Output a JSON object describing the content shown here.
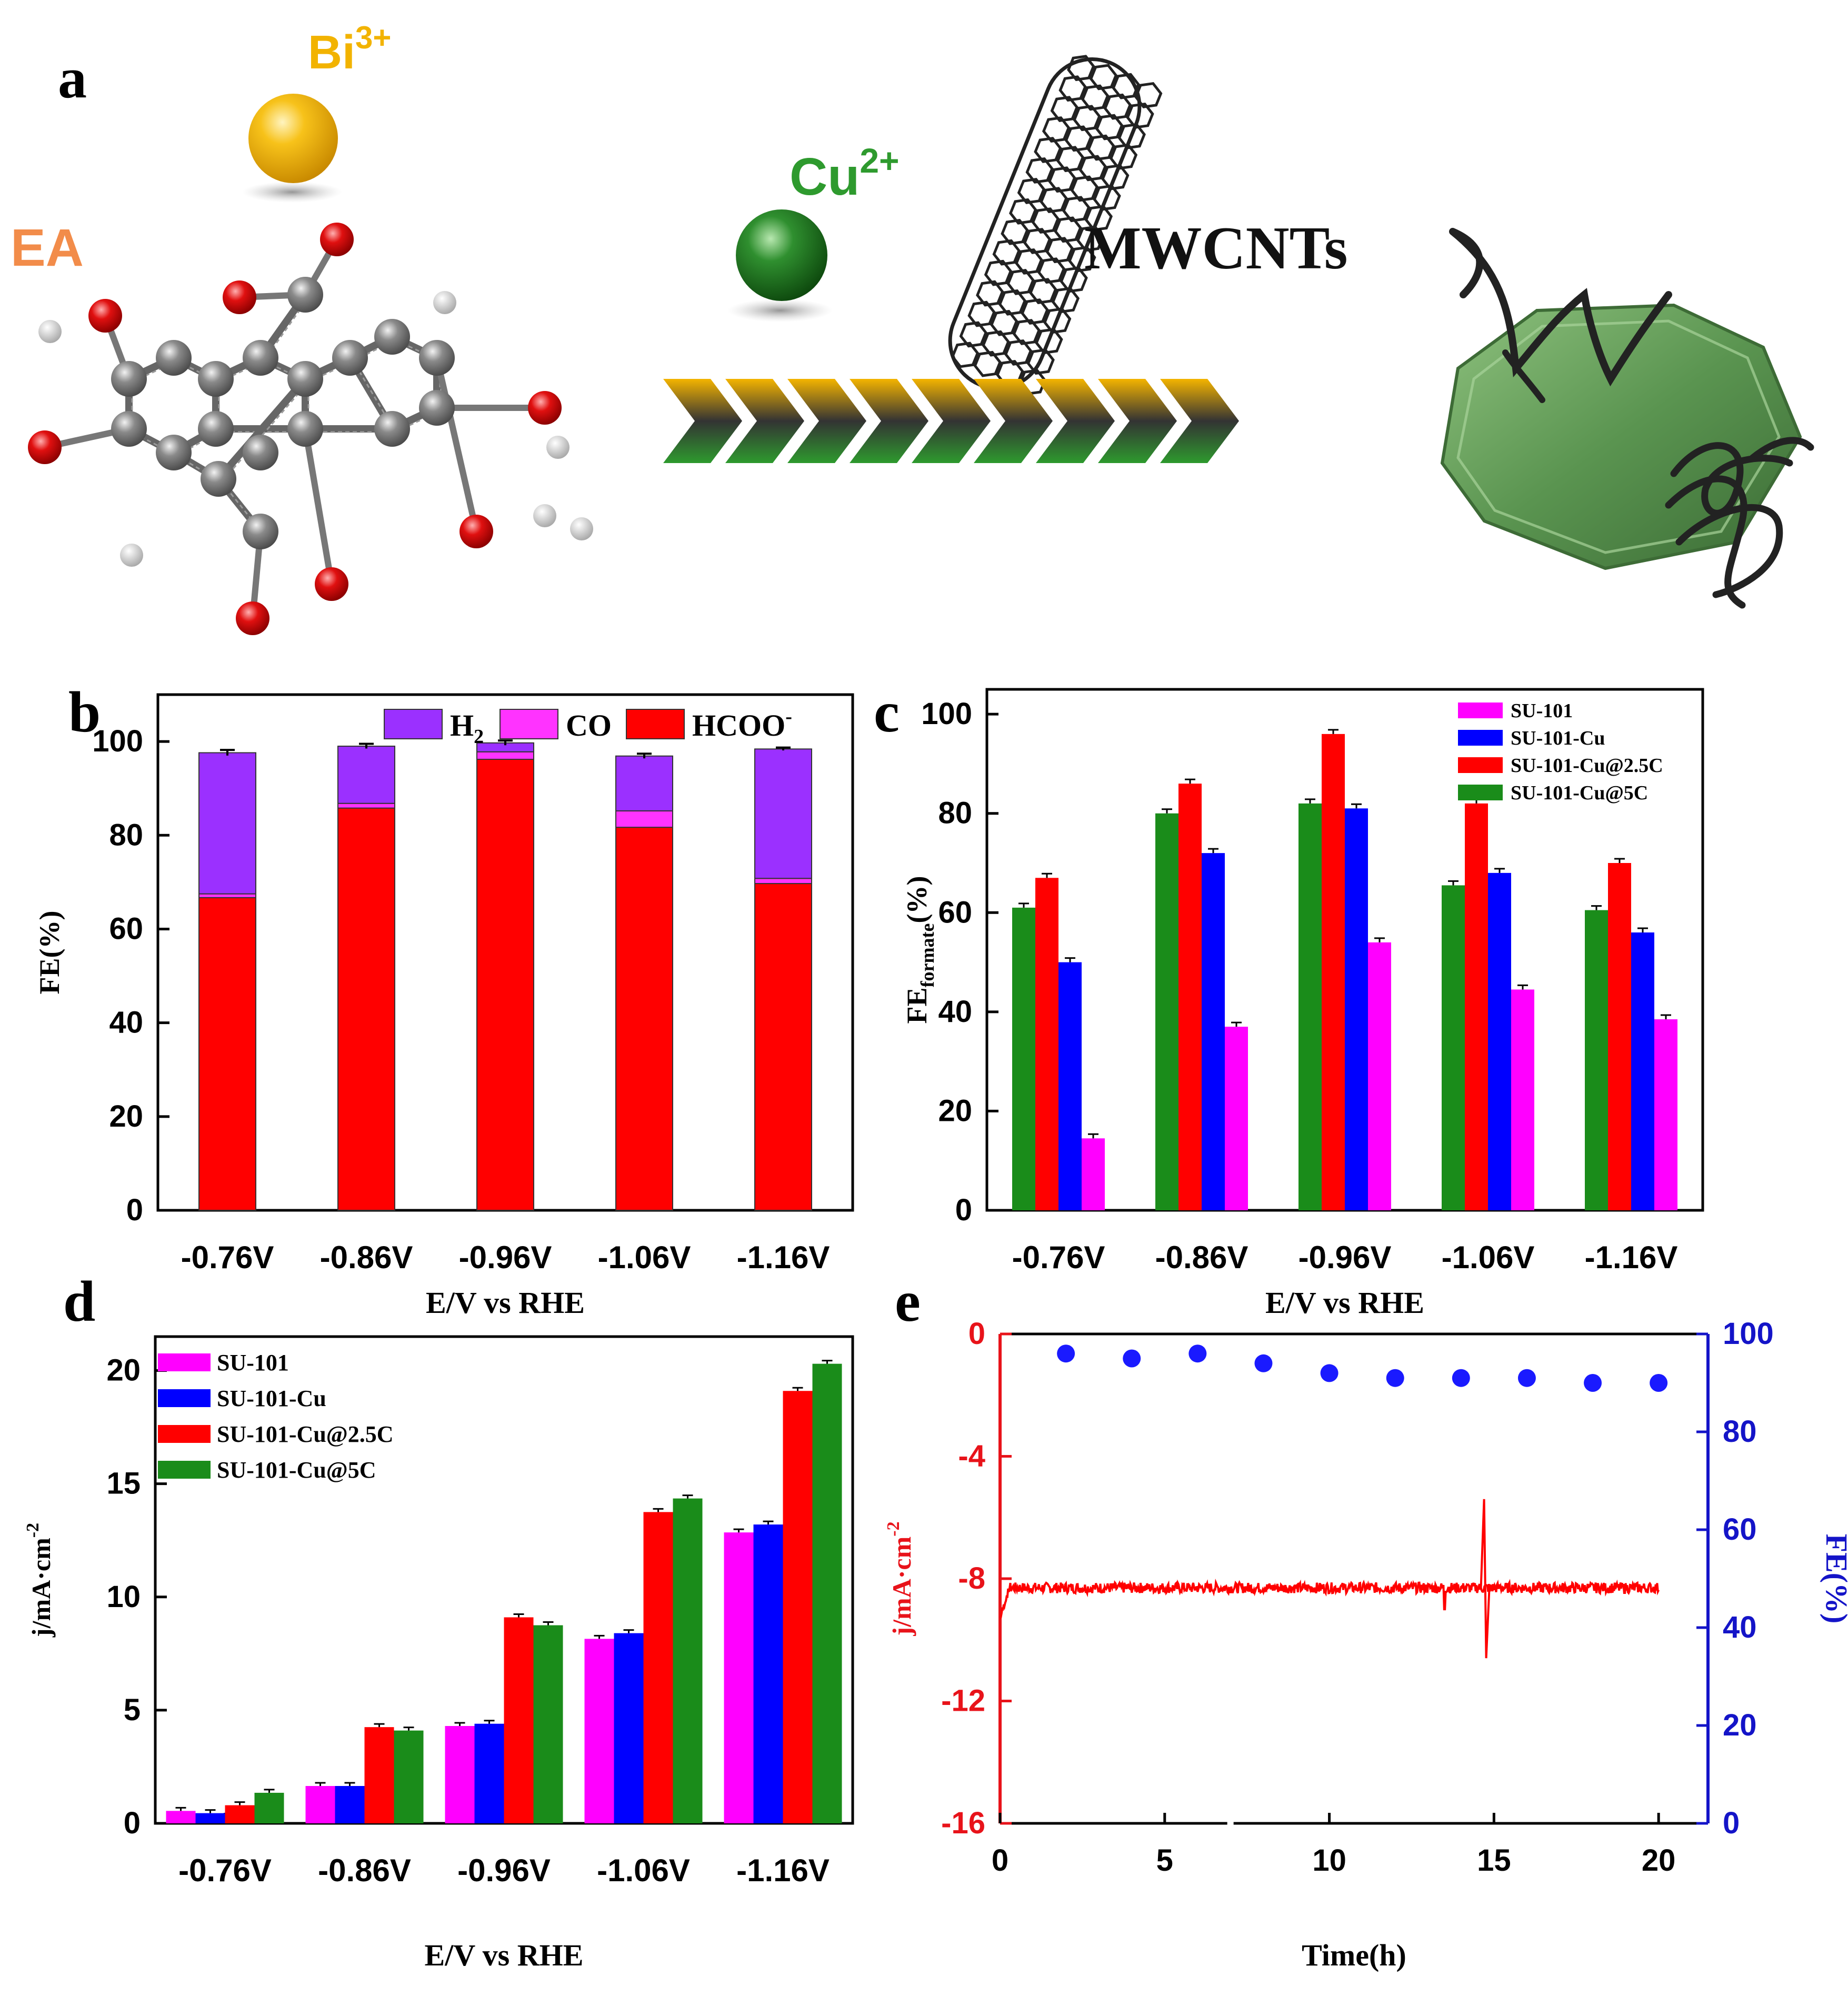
{
  "panel_a": {
    "label": "a",
    "ea_label": "EA",
    "bi_ion": "Bi",
    "bi_charge": "3+",
    "cu_ion": "Cu",
    "cu_charge": "2+",
    "mwcnt_label": "MWCNTs",
    "colors": {
      "bi": "#f2b300",
      "cu": "#2e8b2e",
      "ea": "#f28c4a",
      "octahedron": "#5d9a56"
    }
  },
  "chart_data": [
    {
      "id": "b",
      "panel_label": "b",
      "type": "bar",
      "stacked": true,
      "categories": [
        "-0.76V",
        "-0.86V",
        "-0.96V",
        "-1.06V",
        "-1.16V"
      ],
      "series": [
        {
          "name": "HCOO",
          "superscript": "-",
          "color": "#ff0000",
          "values": [
            66.7,
            85.8,
            96.2,
            81.7,
            69.7
          ]
        },
        {
          "name": "CO",
          "color": "#ff33ff",
          "values": [
            0.8,
            1.0,
            1.6,
            3.5,
            1.1
          ]
        },
        {
          "name": "H",
          "subscript": "2",
          "color": "#9b30ff",
          "values": [
            30.1,
            12.2,
            1.9,
            11.7,
            27.6
          ]
        }
      ],
      "errors": [
        0.6,
        0.5,
        0.5,
        0.5,
        0.3
      ],
      "xlabel": "E/V vs RHE",
      "ylabel": "FE(%)",
      "ylim": [
        0,
        110
      ],
      "yticks": [
        0,
        20,
        40,
        60,
        80,
        100
      ],
      "legend": "top-right"
    },
    {
      "id": "c",
      "panel_label": "c",
      "type": "bar",
      "categories": [
        "-0.76V",
        "-0.86V",
        "-0.96V",
        "-1.06V",
        "-1.16V"
      ],
      "series": [
        {
          "name": "SU-101-Cu@5C",
          "color": "#1a8c1a",
          "values": [
            61,
            80,
            82,
            65.5,
            60.5
          ]
        },
        {
          "name": "SU-101-Cu@2.5C",
          "color": "#ff0000",
          "values": [
            67,
            86,
            96,
            82,
            70
          ]
        },
        {
          "name": "SU-101-Cu",
          "color": "#0000ff",
          "values": [
            50,
            72,
            81,
            68,
            56
          ]
        },
        {
          "name": "SU-101",
          "color": "#ff00ff",
          "values": [
            14.5,
            37,
            54,
            44.5,
            38.5
          ]
        }
      ],
      "legend_order": [
        "SU-101",
        "SU-101-Cu",
        "SU-101-Cu@2.5C",
        "SU-101-Cu@5C"
      ],
      "xlabel": "E/V vs RHE",
      "ylabel": "FE",
      "ylabel_sub": "formate",
      "ylabel_suffix": "(%)",
      "ylim": [
        0,
        105
      ],
      "yticks": [
        0,
        20,
        40,
        60,
        80,
        100
      ],
      "legend": "top-right"
    },
    {
      "id": "d",
      "panel_label": "d",
      "type": "bar",
      "categories": [
        "-0.76V",
        "-0.86V",
        "-0.96V",
        "-1.06V",
        "-1.16V"
      ],
      "series": [
        {
          "name": "SU-101",
          "color": "#ff00ff",
          "values": [
            0.55,
            1.65,
            4.3,
            8.15,
            12.85
          ]
        },
        {
          "name": "SU-101-Cu",
          "color": "#0000ff",
          "values": [
            0.45,
            1.65,
            4.4,
            8.4,
            13.2
          ]
        },
        {
          "name": "SU-101-Cu@2.5C",
          "color": "#ff0000",
          "values": [
            0.8,
            4.25,
            9.1,
            13.75,
            19.1
          ]
        },
        {
          "name": "SU-101-Cu@5C",
          "color": "#1a8c1a",
          "values": [
            1.35,
            4.1,
            8.75,
            14.35,
            20.3
          ]
        }
      ],
      "xlabel": "E/V vs RHE",
      "ylabel": "j/mA·cm",
      "ylabel_sup": "-2",
      "ylim": [
        0,
        21.5
      ],
      "yticks": [
        0,
        5,
        10,
        15,
        20
      ],
      "legend": "top-left"
    },
    {
      "id": "e",
      "panel_label": "e",
      "type": "line",
      "xlabel": "Time(h)",
      "xlim": [
        0,
        21.5
      ],
      "xticks": [
        0,
        5,
        10,
        15,
        20
      ],
      "y_left": {
        "label": "j/mA·cm",
        "label_sup": "-2",
        "ylim": [
          -16,
          0
        ],
        "ticks": [
          0,
          -4,
          -8,
          -12,
          -16
        ],
        "color": "#e8131a"
      },
      "y_right": {
        "label": "FE(%)",
        "ylim": [
          0,
          100
        ],
        "ticks": [
          0,
          20,
          40,
          60,
          80,
          100
        ],
        "color": "#1414c8"
      },
      "current_series": {
        "name": "current density",
        "color": "#ff0000",
        "baseline": -8.3,
        "time_range": [
          0,
          20
        ],
        "spike_time": 14.7,
        "spike_max": -5.4,
        "spike_min": -10.6
      },
      "fe_series": {
        "name": "FE",
        "color": "#1a1aff",
        "x": [
          2,
          4,
          6,
          8,
          10,
          12,
          14,
          16,
          18,
          20
        ],
        "y": [
          96,
          95,
          96,
          94,
          92,
          91,
          91,
          91,
          90,
          90
        ]
      }
    }
  ]
}
